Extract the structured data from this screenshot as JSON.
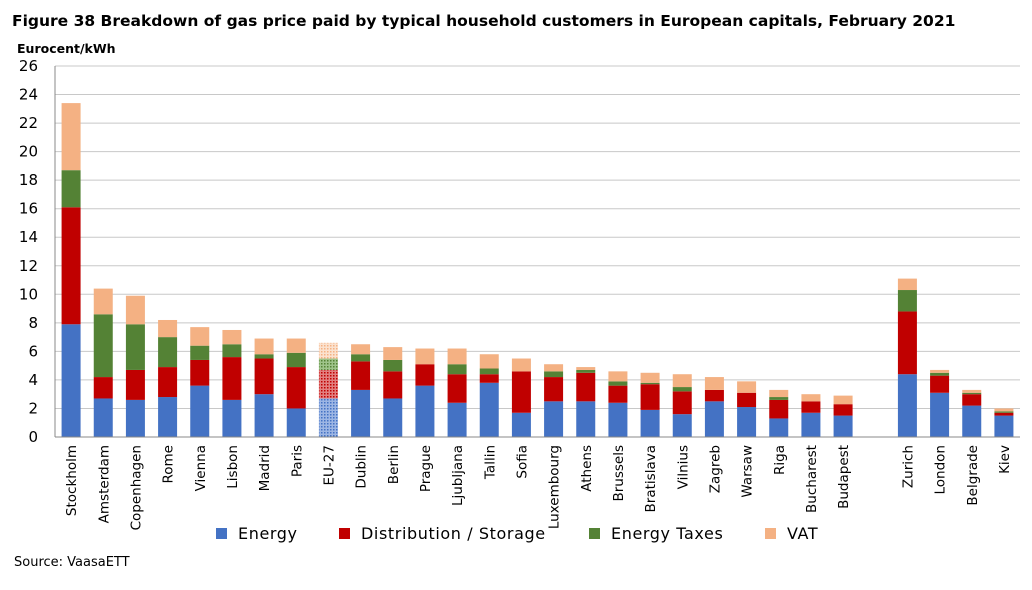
{
  "header": {
    "title": "Figure 38 Breakdown of gas price paid by typical household customers in European capitals, February 2021",
    "y_unit": "Eurocent/kWh"
  },
  "footer": {
    "source": "Source: VaasaETT"
  },
  "chart_data": {
    "type": "bar",
    "stacked": true,
    "title": "Figure 38 Breakdown of gas price paid by typical household customers in European capitals, February 2021",
    "xlabel": "",
    "ylabel": "Eurocent/kWh",
    "ylim": [
      0,
      26
    ],
    "yticks": [
      0,
      2,
      4,
      6,
      8,
      10,
      12,
      14,
      16,
      18,
      20,
      22,
      24,
      26
    ],
    "grid": true,
    "legend_position": "bottom",
    "colors": {
      "Energy": "#4472c4",
      "Distribution / Storage": "#c00000",
      "Energy Taxes": "#548235",
      "VAT": "#f4b183"
    },
    "categories": [
      "Stockholm",
      "Amsterdam",
      "Copenhagen",
      "Rome",
      "Vienna",
      "Lisbon",
      "Madrid",
      "Paris",
      "EU-27",
      "Dublin",
      "Berlin",
      "Prague",
      "Ljubljana",
      "Tallin",
      "Sofia",
      "Luxembourg",
      "Athens",
      "Brussels",
      "Bratislava",
      "Vilnius",
      "Zagreb",
      "Warsaw",
      "Riga",
      "Bucharest",
      "Budapest",
      "",
      "Zurich",
      "London",
      "Belgrade",
      "Kiev"
    ],
    "highlight_category": "EU-27",
    "series": [
      {
        "name": "Energy",
        "values": [
          7.9,
          2.7,
          2.6,
          2.8,
          3.6,
          2.6,
          3.0,
          2.0,
          2.7,
          3.3,
          2.7,
          3.6,
          2.4,
          3.8,
          1.7,
          2.5,
          2.5,
          2.4,
          1.9,
          1.6,
          2.5,
          2.1,
          1.3,
          1.7,
          1.5,
          null,
          4.4,
          3.1,
          2.2,
          1.5
        ]
      },
      {
        "name": "Distribution / Storage",
        "values": [
          8.2,
          1.5,
          2.1,
          2.1,
          1.8,
          3.0,
          2.5,
          2.9,
          2.0,
          2.0,
          1.9,
          1.5,
          2.0,
          0.6,
          2.9,
          1.7,
          2.0,
          1.2,
          1.8,
          1.6,
          0.8,
          1.0,
          1.3,
          0.8,
          0.8,
          null,
          4.4,
          1.2,
          0.8,
          0.2
        ]
      },
      {
        "name": "Energy Taxes",
        "values": [
          2.6,
          4.4,
          3.2,
          2.1,
          1.0,
          0.9,
          0.3,
          1.0,
          0.8,
          0.5,
          0.8,
          0.0,
          0.7,
          0.4,
          0.0,
          0.4,
          0.2,
          0.3,
          0.1,
          0.3,
          0.0,
          0.0,
          0.2,
          0.0,
          0.0,
          null,
          1.5,
          0.2,
          0.1,
          0.1
        ]
      },
      {
        "name": "VAT",
        "values": [
          4.7,
          1.8,
          2.0,
          1.2,
          1.3,
          1.0,
          1.1,
          1.0,
          1.1,
          0.7,
          0.9,
          1.1,
          1.1,
          1.0,
          0.9,
          0.5,
          0.2,
          0.7,
          0.7,
          0.9,
          0.9,
          0.8,
          0.5,
          0.5,
          0.6,
          null,
          0.8,
          0.2,
          0.2,
          0.2
        ]
      }
    ]
  }
}
